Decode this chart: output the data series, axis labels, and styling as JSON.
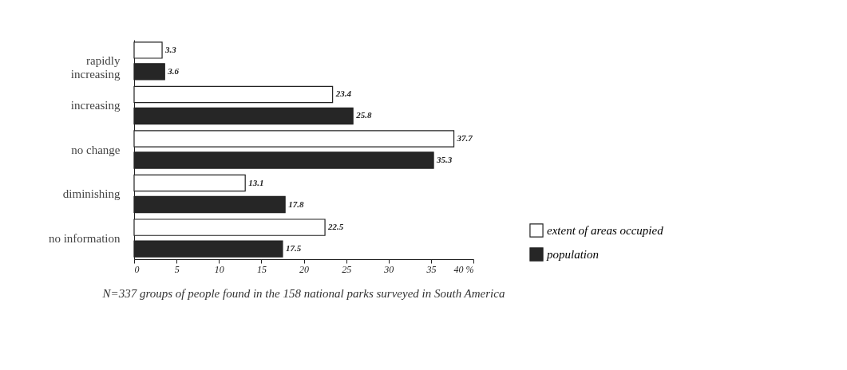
{
  "chart_data": {
    "type": "bar",
    "orientation": "horizontal",
    "categories": [
      "rapidly\nincreasing",
      "increasing",
      "no change",
      "diminishing",
      "no information"
    ],
    "series": [
      {
        "name": "extent of areas occupied",
        "color": "#ffffff",
        "values": [
          3.3,
          23.4,
          37.7,
          13.1,
          22.5
        ]
      },
      {
        "name": "population",
        "color": "#262626",
        "values": [
          3.6,
          25.8,
          35.3,
          17.8,
          17.5
        ]
      }
    ],
    "xlim": [
      0,
      40
    ],
    "xticks": [
      0,
      5,
      10,
      15,
      20,
      25,
      30,
      35,
      {
        "value": 40,
        "label": "40 %"
      }
    ],
    "data_labels": true,
    "grid": false,
    "legend": "bottom right",
    "annotations": [
      "N=337 groups of people found in the 158 national parks surveyed in South America"
    ]
  }
}
